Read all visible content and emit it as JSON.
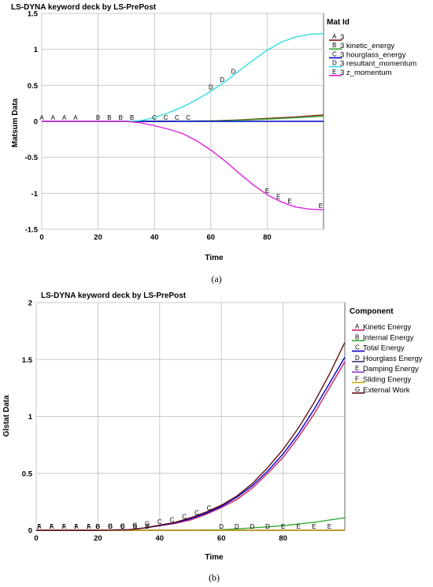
{
  "chart_data": [
    {
      "type": "line",
      "panel": "(a)",
      "title": "LS-DYNA keyword deck by LS-PrePost",
      "xlabel": "Time",
      "ylabel": "Matsum Data",
      "legend_title": "Mat Id",
      "xlim": [
        0,
        100
      ],
      "ylim": [
        -1.5,
        1.5
      ],
      "xticks": [
        "0",
        "20",
        "40",
        "60",
        "80"
      ],
      "yticks": [
        "-1.5",
        "-1",
        "-0.5",
        "0",
        "0.5",
        "1",
        "1.5"
      ],
      "grid": true,
      "legend_position": "right",
      "series": [
        {
          "marker": "A",
          "name": "3",
          "color": "#8b1a1a",
          "x": [
            0,
            20,
            40,
            60,
            70,
            80,
            90,
            100
          ],
          "y": [
            0,
            0,
            0,
            0.005,
            0.02,
            0.04,
            0.06,
            0.09
          ]
        },
        {
          "marker": "B",
          "name": "3 kinetic_energy",
          "color": "#33aa33",
          "x": [
            0,
            20,
            40,
            60,
            70,
            80,
            90,
            100
          ],
          "y": [
            0,
            0,
            0,
            0.005,
            0.015,
            0.03,
            0.05,
            0.07
          ]
        },
        {
          "marker": "C",
          "name": "3 hourglass_energy",
          "color": "#0000cc",
          "x": [
            0,
            20,
            40,
            60,
            80,
            100
          ],
          "y": [
            0,
            0,
            0,
            0,
            0,
            0
          ]
        },
        {
          "marker": "D",
          "name": "3 resultant_momentum",
          "color": "#33dddd",
          "x": [
            0,
            10,
            20,
            30,
            35,
            40,
            45,
            50,
            55,
            60,
            65,
            70,
            75,
            80,
            85,
            90,
            95,
            100
          ],
          "y": [
            0,
            0,
            0,
            0,
            0.01,
            0.05,
            0.12,
            0.2,
            0.3,
            0.42,
            0.55,
            0.7,
            0.85,
            0.99,
            1.1,
            1.17,
            1.21,
            1.22
          ]
        },
        {
          "marker": "E",
          "name": "3 z_momentum",
          "color": "#dd22dd",
          "x": [
            0,
            10,
            20,
            30,
            35,
            40,
            45,
            50,
            55,
            60,
            65,
            70,
            75,
            80,
            85,
            90,
            95,
            100
          ],
          "y": [
            0,
            0,
            0,
            0,
            -0.02,
            -0.06,
            -0.11,
            -0.17,
            -0.27,
            -0.4,
            -0.55,
            -0.72,
            -0.88,
            -1.02,
            -1.12,
            -1.19,
            -1.22,
            -1.23
          ]
        }
      ]
    },
    {
      "type": "line",
      "panel": "(b)",
      "title": "LS-DYNA keyword deck by LS-PrePost",
      "xlabel": "Time",
      "ylabel": "Glstat Data",
      "legend_title": "Component",
      "xlim": [
        0,
        100
      ],
      "ylim": [
        0,
        2
      ],
      "xticks": [
        "0",
        "20",
        "40",
        "60",
        "80"
      ],
      "yticks": [
        "0",
        "0.5",
        "1",
        "1.5",
        "2"
      ],
      "grid": true,
      "legend_position": "right",
      "series": [
        {
          "marker": "A",
          "name": "Kinetic Energy",
          "color": "#cc2266",
          "x": [
            0,
            10,
            20,
            30,
            35,
            40,
            45,
            50,
            55,
            60,
            65,
            70,
            75,
            80,
            85,
            90,
            95,
            100
          ],
          "y": [
            0,
            0,
            0,
            0.005,
            0.02,
            0.04,
            0.06,
            0.09,
            0.14,
            0.2,
            0.27,
            0.37,
            0.5,
            0.64,
            0.82,
            1.02,
            1.25,
            1.48
          ]
        },
        {
          "marker": "B",
          "name": "Internal Energy",
          "color": "#33aa33",
          "x": [
            0,
            20,
            40,
            60,
            70,
            80,
            90,
            100
          ],
          "y": [
            0,
            0,
            0,
            0.005,
            0.02,
            0.04,
            0.07,
            0.11
          ]
        },
        {
          "marker": "C",
          "name": "Total Energy",
          "color": "#0000cc",
          "x": [
            0,
            10,
            20,
            30,
            35,
            40,
            45,
            50,
            55,
            60,
            65,
            70,
            75,
            80,
            85,
            90,
            95,
            100
          ],
          "y": [
            0,
            0,
            0,
            0.005,
            0.02,
            0.04,
            0.065,
            0.1,
            0.15,
            0.21,
            0.29,
            0.39,
            0.52,
            0.67,
            0.85,
            1.06,
            1.29,
            1.52
          ]
        },
        {
          "marker": "D",
          "name": "Hourglass Energy",
          "color": "#333377",
          "x": [
            0,
            20,
            40,
            60,
            80,
            100
          ],
          "y": [
            0,
            0,
            0,
            0,
            0,
            0
          ]
        },
        {
          "marker": "E",
          "name": "Damping Energy",
          "color": "#8844cc",
          "x": [
            0,
            20,
            40,
            60,
            80,
            100
          ],
          "y": [
            0,
            0,
            0,
            0,
            0,
            0
          ]
        },
        {
          "marker": "F",
          "name": "Sliding Energy",
          "color": "#ccaa00",
          "x": [
            0,
            20,
            40,
            60,
            80,
            100
          ],
          "y": [
            0,
            0,
            0,
            0,
            0,
            0
          ]
        },
        {
          "marker": "G",
          "name": "External Work",
          "color": "#661111",
          "x": [
            0,
            10,
            20,
            30,
            35,
            40,
            45,
            50,
            55,
            60,
            65,
            70,
            75,
            80,
            85,
            90,
            95,
            100
          ],
          "y": [
            0,
            0,
            0,
            0.005,
            0.02,
            0.045,
            0.07,
            0.11,
            0.16,
            0.22,
            0.3,
            0.41,
            0.55,
            0.71,
            0.9,
            1.12,
            1.37,
            1.65
          ]
        }
      ]
    }
  ]
}
